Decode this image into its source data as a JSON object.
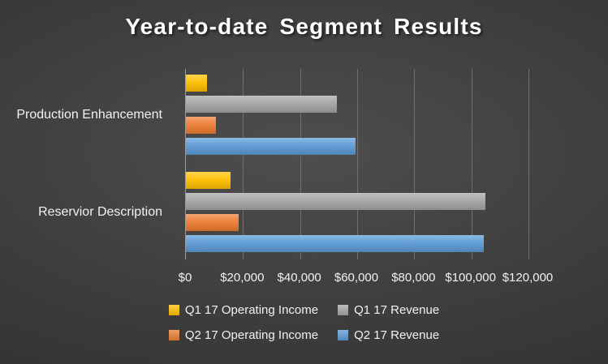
{
  "chart_data": {
    "type": "bar",
    "orientation": "horizontal",
    "title": "Year-to-date Segment Results",
    "categories": [
      "Production Enhancement",
      "Reservior Description"
    ],
    "series": [
      {
        "name": "Q1 17 Operating Income",
        "color": "#FFC000",
        "values": [
          7500,
          15500
        ]
      },
      {
        "name": "Q1 17 Revenue",
        "color": "#A5A5A5",
        "values": [
          53000,
          105000
        ]
      },
      {
        "name": "Q2 17 Operating Income",
        "color": "#ED7D31",
        "values": [
          10500,
          18500
        ]
      },
      {
        "name": "Q2 17 Revenue",
        "color": "#5B9BD5",
        "values": [
          59500,
          104500
        ]
      }
    ],
    "xlim": [
      0,
      120000
    ],
    "x_tick_values": [
      0,
      20000,
      40000,
      60000,
      80000,
      100000,
      120000
    ],
    "x_ticks": [
      "$0",
      "$20,000",
      "$40,000",
      "$60,000",
      "$80,000",
      "$100,000",
      "$120,000"
    ],
    "grid": true,
    "legend_position": "bottom",
    "legend_rows": [
      [
        "Q1 17 Operating Income",
        "Q1 17 Revenue"
      ],
      [
        "Q2 17 Operating Income",
        "Q2 17 Revenue"
      ]
    ]
  },
  "colors": {
    "background_center": "#4e4e4e",
    "background_edge": "#2b2b2b",
    "title_text": "#ffffff",
    "axis_text": "#f2f2f2",
    "gridline": "#6f6f6f",
    "axis_line": "#9a9a9a"
  }
}
